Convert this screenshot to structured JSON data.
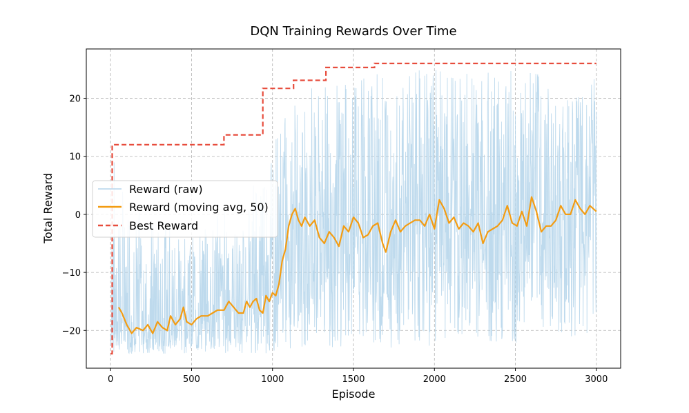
{
  "chart_data": {
    "type": "line",
    "title": "DQN Training Rewards Over Time",
    "xlabel": "Episode",
    "ylabel": "Total Reward",
    "xlim": [
      -150,
      3150
    ],
    "ylim": [
      -26.5,
      28.5
    ],
    "xticks": [
      0,
      500,
      1000,
      1500,
      2000,
      2500,
      3000
    ],
    "yticks": [
      -20,
      -10,
      0,
      10,
      20
    ],
    "ytick_labels": [
      "−20",
      "−10",
      "0",
      "10",
      "20"
    ],
    "grid": true,
    "legend_position": "center-left",
    "series": [
      {
        "name": "Reward (raw)",
        "style": "solid-thin",
        "color": "#b3d3ea",
        "envelope": {
          "x": [
            0,
            100,
            200,
            300,
            400,
            500,
            600,
            700,
            800,
            900,
            1000,
            1100,
            1200,
            1300,
            1400,
            1500,
            1600,
            1700,
            1800,
            1900,
            2000,
            2100,
            2200,
            2300,
            2400,
            2500,
            2600,
            2700,
            2800,
            2900,
            3000
          ],
          "upper": [
            12,
            2,
            0,
            -2,
            0,
            -4,
            -2,
            2,
            -4,
            8,
            14,
            18,
            22,
            22,
            23,
            23,
            24,
            25,
            24,
            25,
            25,
            24,
            25,
            25,
            24,
            25,
            25,
            24,
            24,
            24,
            24
          ],
          "lower": [
            -24,
            -24,
            -24,
            -24,
            -24,
            -24,
            -24,
            -24,
            -24,
            -24,
            -24,
            -24,
            -23,
            -23,
            -23,
            -22,
            -22,
            -23,
            -23,
            -22,
            -23,
            -22,
            -22,
            -22,
            -22,
            -23,
            -22,
            -21,
            -22,
            -21,
            -21
          ]
        }
      },
      {
        "name": "Reward (moving avg, 50)",
        "style": "solid",
        "color": "#f39c12",
        "x": [
          50,
          70,
          100,
          130,
          160,
          200,
          230,
          260,
          290,
          320,
          350,
          370,
          400,
          430,
          450,
          470,
          500,
          530,
          560,
          600,
          630,
          660,
          700,
          730,
          760,
          790,
          820,
          840,
          860,
          880,
          900,
          920,
          940,
          960,
          980,
          1000,
          1020,
          1040,
          1060,
          1080,
          1100,
          1120,
          1140,
          1160,
          1180,
          1200,
          1230,
          1260,
          1290,
          1320,
          1350,
          1380,
          1410,
          1440,
          1470,
          1500,
          1530,
          1560,
          1590,
          1620,
          1650,
          1680,
          1700,
          1730,
          1760,
          1790,
          1820,
          1850,
          1880,
          1910,
          1940,
          1970,
          2000,
          2030,
          2060,
          2090,
          2120,
          2150,
          2180,
          2210,
          2240,
          2270,
          2300,
          2330,
          2360,
          2390,
          2420,
          2450,
          2480,
          2510,
          2540,
          2570,
          2600,
          2630,
          2660,
          2690,
          2720,
          2750,
          2780,
          2810,
          2840,
          2870,
          2900,
          2930,
          2960,
          3000
        ],
        "y": [
          -16,
          -17,
          -19,
          -20.5,
          -19.5,
          -20,
          -19,
          -20.5,
          -18.5,
          -19.5,
          -20,
          -17.5,
          -19,
          -18,
          -16,
          -18.5,
          -19,
          -18,
          -17.5,
          -17.5,
          -17,
          -16.5,
          -16.5,
          -15,
          -16,
          -17,
          -17,
          -15,
          -16,
          -15,
          -14.5,
          -16.5,
          -17,
          -14,
          -15,
          -13.5,
          -14,
          -12,
          -8,
          -6,
          -2,
          0,
          1,
          -1,
          -2,
          -0.5,
          -2,
          -1,
          -4,
          -5,
          -3,
          -4,
          -5.5,
          -2,
          -3,
          -0.5,
          -1.5,
          -4,
          -3.5,
          -2,
          -1.5,
          -5,
          -6.5,
          -3,
          -1,
          -3,
          -2,
          -1.5,
          -1,
          -1,
          -2,
          0,
          -2.5,
          2.5,
          1,
          -1.5,
          -0.5,
          -2.5,
          -1.5,
          -2,
          -3,
          -1.5,
          -5,
          -3,
          -2.5,
          -2,
          -1,
          1.5,
          -1.5,
          -2,
          0.5,
          -2,
          3,
          0.5,
          -3,
          -2,
          -2,
          -1,
          1.5,
          0,
          0,
          2.5,
          1,
          0,
          1.5,
          0.5
        ]
      },
      {
        "name": "Best Reward",
        "style": "dashed-step",
        "color": "#e74c3c",
        "x": [
          0,
          10,
          700,
          940,
          1130,
          1330,
          1630,
          3000
        ],
        "y": [
          -24,
          12,
          13.7,
          21.7,
          23.1,
          25.3,
          26,
          26
        ]
      }
    ]
  }
}
